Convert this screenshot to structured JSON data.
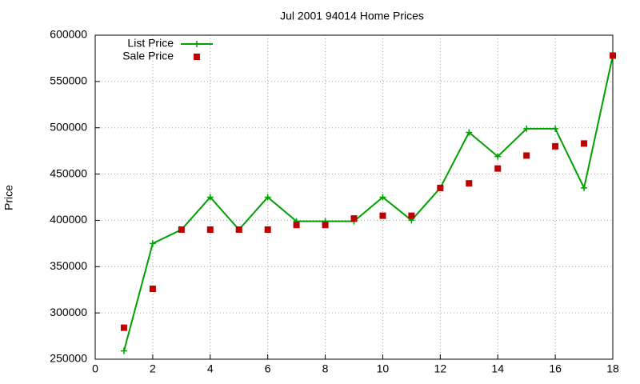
{
  "chart_data": {
    "type": "line",
    "title": "Jul 2001 94014 Home Prices",
    "y_label": "Price",
    "x": [
      1,
      2,
      3,
      4,
      5,
      6,
      7,
      8,
      9,
      10,
      11,
      12,
      13,
      14,
      15,
      16,
      17,
      18
    ],
    "series": [
      {
        "name": "List Price",
        "color": "#00a000",
        "style": "linespoints",
        "values": [
          259000,
          375000,
          390000,
          425000,
          390000,
          425000,
          399000,
          399000,
          399000,
          425000,
          400000,
          435000,
          495000,
          469000,
          499000,
          499000,
          435000,
          578000
        ]
      },
      {
        "name": "Sale Price",
        "color": "#c00000",
        "style": "points",
        "values": [
          284000,
          326000,
          390000,
          390000,
          390000,
          390000,
          395000,
          395000,
          402000,
          405000,
          405000,
          435000,
          440000,
          456000,
          470000,
          480000,
          483000,
          578000
        ]
      }
    ],
    "xlim": [
      0,
      18
    ],
    "xticks": [
      0,
      2,
      4,
      6,
      8,
      10,
      12,
      14,
      16,
      18
    ],
    "ylim": [
      250000,
      600000
    ],
    "yticks": [
      250000,
      300000,
      350000,
      400000,
      450000,
      500000,
      550000,
      600000
    ],
    "grid": true,
    "legend": "top-left"
  }
}
